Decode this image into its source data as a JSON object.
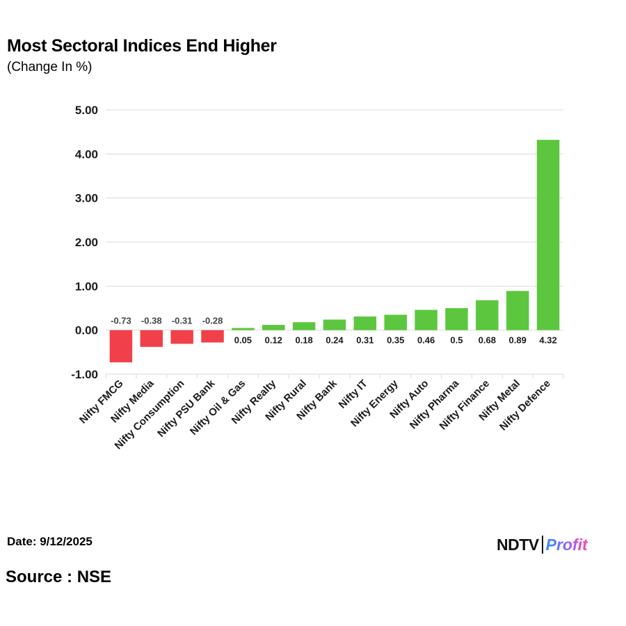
{
  "header": {
    "title": "Most Sectoral Indices End Higher",
    "subtitle": "(Change In %)"
  },
  "footer": {
    "date": "Date: 9/12/2025",
    "source": "Source : NSE",
    "logo_ndtv": "NDTV",
    "logo_profit": "Profit"
  },
  "colors": {
    "positive": "#5cc73e",
    "negative": "#f2404a",
    "grid": "#d9d9d9",
    "text": "#1a1a1a"
  },
  "chart_data": {
    "type": "bar",
    "title": "Most Sectoral Indices End Higher",
    "subtitle": "(Change In %)",
    "categories": [
      "Nifty FMCG",
      "Nifty Media",
      "Nifty Consumption",
      "Nifty PSU Bank",
      "Nifty Oil & Gas",
      "Nifty Realty",
      "Nifty Rural",
      "Nifty Bank",
      "Nifty IT",
      "Nifty Energy",
      "Nifty Auto",
      "Nifty Pharma",
      "Nifty Finance",
      "Nifty Metal",
      "Nifty Defence"
    ],
    "values": [
      -0.73,
      -0.38,
      -0.31,
      -0.28,
      0.05,
      0.12,
      0.18,
      0.24,
      0.31,
      0.35,
      0.46,
      0.5,
      0.68,
      0.89,
      4.32
    ],
    "data_labels": [
      "-0.73",
      "-0.38",
      "-0.31",
      "-0.28",
      "0.05",
      "0.12",
      "0.18",
      "0.24",
      "0.31",
      "0.35",
      "0.46",
      "0.5",
      "0.68",
      "0.89",
      "4.32"
    ],
    "ylim": [
      -1,
      5
    ],
    "yticks": [
      5,
      4,
      3,
      2,
      1,
      0,
      -1
    ],
    "ytick_labels": [
      "5.00",
      "4.00",
      "3.00",
      "2.00",
      "1.00",
      "0.00",
      "-1.00"
    ],
    "grid": true,
    "legend": "none",
    "xlabel": "",
    "ylabel": ""
  }
}
